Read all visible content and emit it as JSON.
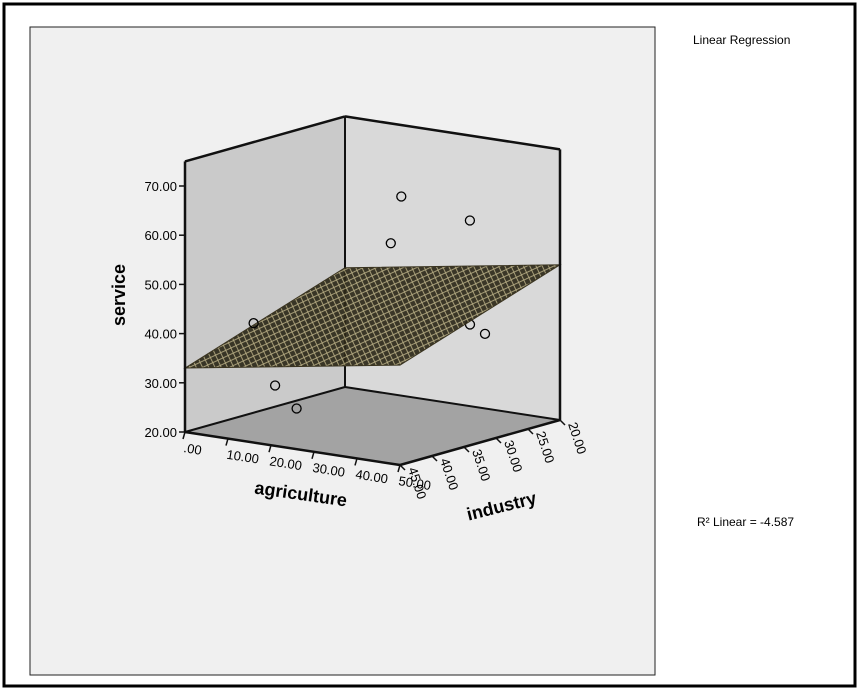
{
  "chart_data": {
    "type": "scatter3d",
    "legend_title": "Linear Regression",
    "fit_label": "R² Linear = -4.587",
    "xlabel": "agriculture",
    "ylabel": "industry",
    "zlabel": "service",
    "x": [
      25,
      35,
      30,
      40,
      38,
      10,
      15,
      20
    ],
    "y": [
      28,
      24,
      33,
      25,
      26,
      41,
      41,
      41
    ],
    "z": [
      65,
      60,
      58,
      38,
      40,
      42,
      30,
      26
    ],
    "color": "#000000",
    "plane_color": "#3a3420",
    "regression_plane": {
      "intercept": 53.25,
      "agriculture": 0.146,
      "industry": -0.45
    },
    "xlim": [
      0,
      50
    ],
    "ylim": [
      45,
      20
    ],
    "zlim": [
      20,
      75
    ],
    "xticks": [
      {
        "value": 0,
        "label": ".00"
      },
      {
        "value": 10,
        "label": "10.00"
      },
      {
        "value": 20,
        "label": "20.00"
      },
      {
        "value": 30,
        "label": "30.00"
      },
      {
        "value": 40,
        "label": "40.00"
      },
      {
        "value": 50,
        "label": "50.00"
      }
    ],
    "yticks": [
      {
        "value": 45,
        "label": "45.00"
      },
      {
        "value": 40,
        "label": "40.00"
      },
      {
        "value": 35,
        "label": "35.00"
      },
      {
        "value": 30,
        "label": "30.00"
      },
      {
        "value": 25,
        "label": "25.00"
      },
      {
        "value": 20,
        "label": "20.00"
      }
    ],
    "zticks": [
      {
        "value": 20,
        "label": "20.00"
      },
      {
        "value": 30,
        "label": "30.00"
      },
      {
        "value": 40,
        "label": "40.00"
      },
      {
        "value": 50,
        "label": "50.00"
      },
      {
        "value": 60,
        "label": "60.00"
      },
      {
        "value": 70,
        "label": "70.00"
      }
    ]
  }
}
